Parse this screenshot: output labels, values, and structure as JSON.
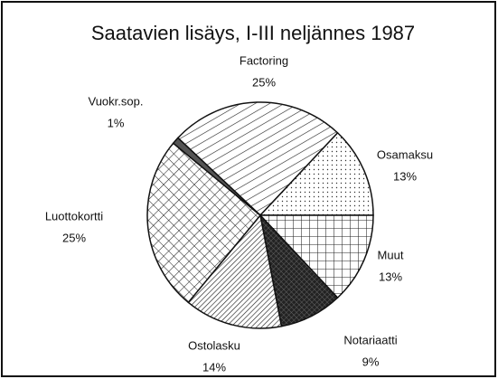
{
  "chart_data": {
    "type": "pie",
    "title": "Saatavien lisäys, I-III neljännes 1987",
    "categories": [
      "Factoring",
      "Osamaksu",
      "Muut",
      "Notariaatti",
      "Ostolasku",
      "Luottokortti",
      "Vuokr.sop."
    ],
    "values": [
      25,
      13,
      13,
      9,
      14,
      25,
      1
    ],
    "value_labels": [
      "25%",
      "13%",
      "13%",
      "9%",
      "14%",
      "25%",
      "1%"
    ]
  }
}
